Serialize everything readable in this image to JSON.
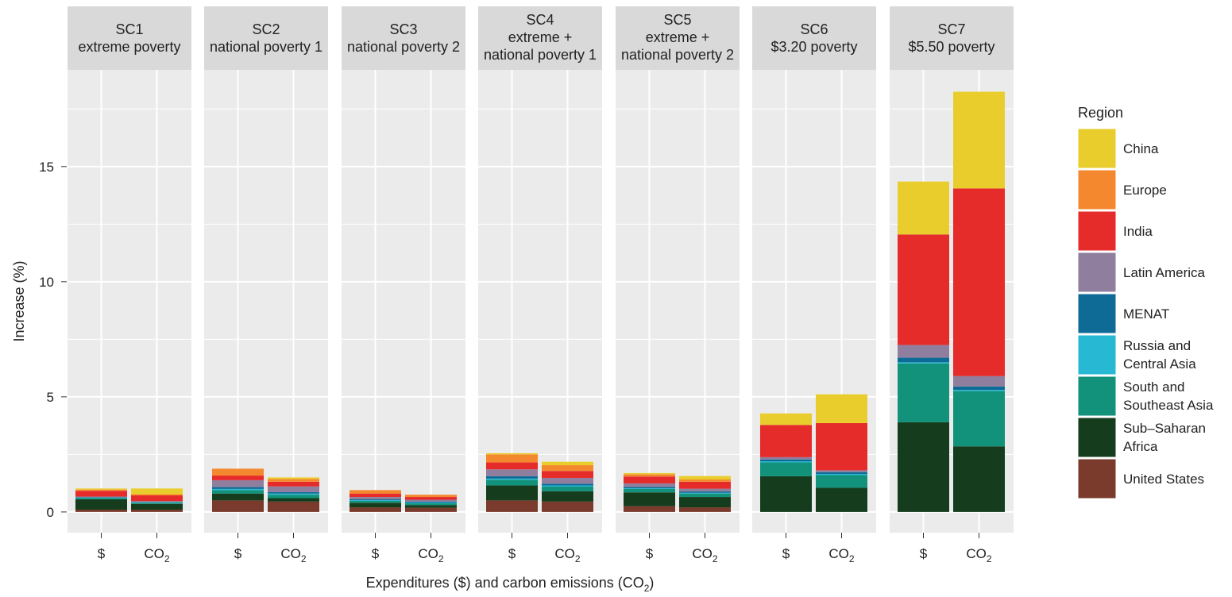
{
  "chart_data": {
    "type": "bar",
    "stacked": true,
    "facets": [
      {
        "title_line1": "SC1",
        "title_lines": [
          "extreme poverty"
        ]
      },
      {
        "title_line1": "SC2",
        "title_lines": [
          "national poverty 1"
        ]
      },
      {
        "title_line1": "SC3",
        "title_lines": [
          "national poverty 2"
        ]
      },
      {
        "title_line1": "SC4",
        "title_lines": [
          "extreme +",
          "national poverty 1"
        ]
      },
      {
        "title_line1": "SC5",
        "title_lines": [
          "extreme +",
          "national poverty 2"
        ]
      },
      {
        "title_line1": "SC6",
        "title_lines": [
          "$3.20 poverty"
        ]
      },
      {
        "title_line1": "SC7",
        "title_lines": [
          "$5.50 poverty"
        ]
      }
    ],
    "categories": [
      "$",
      "CO2"
    ],
    "category_labels": [
      {
        "main": "$",
        "sub": ""
      },
      {
        "main": "CO",
        "sub": "2"
      }
    ],
    "series": [
      {
        "name": "United States",
        "color": "#7b3b2c",
        "values": [
          [
            0.1,
            0.1
          ],
          [
            0.5,
            0.45
          ],
          [
            0.2,
            0.18
          ],
          [
            0.5,
            0.45
          ],
          [
            0.25,
            0.2
          ],
          [
            0.0,
            0.0
          ],
          [
            0.0,
            0.0
          ]
        ]
      },
      {
        "name": "Sub–Saharan Africa",
        "color": "#153d1d",
        "values": [
          [
            0.45,
            0.25
          ],
          [
            0.3,
            0.15
          ],
          [
            0.2,
            0.12
          ],
          [
            0.65,
            0.45
          ],
          [
            0.6,
            0.45
          ],
          [
            1.55,
            1.05
          ],
          [
            3.9,
            2.85
          ]
        ]
      },
      {
        "name": "South and Southeast Asia",
        "color": "#12927a",
        "values": [
          [
            0.05,
            0.05
          ],
          [
            0.15,
            0.15
          ],
          [
            0.08,
            0.08
          ],
          [
            0.25,
            0.2
          ],
          [
            0.15,
            0.15
          ],
          [
            0.6,
            0.55
          ],
          [
            2.55,
            2.4
          ]
        ]
      },
      {
        "name": "Russia and Central Asia",
        "color": "#27b8d4",
        "values": [
          [
            0.02,
            0.02
          ],
          [
            0.05,
            0.05
          ],
          [
            0.03,
            0.03
          ],
          [
            0.05,
            0.05
          ],
          [
            0.03,
            0.03
          ],
          [
            0.05,
            0.05
          ],
          [
            0.05,
            0.05
          ]
        ]
      },
      {
        "name": "MENAT",
        "color": "#0d6b96",
        "values": [
          [
            0.02,
            0.02
          ],
          [
            0.08,
            0.06
          ],
          [
            0.04,
            0.04
          ],
          [
            0.1,
            0.08
          ],
          [
            0.06,
            0.06
          ],
          [
            0.08,
            0.08
          ],
          [
            0.2,
            0.15
          ]
        ]
      },
      {
        "name": "Latin America",
        "color": "#8f7e9e",
        "values": [
          [
            0.03,
            0.03
          ],
          [
            0.3,
            0.25
          ],
          [
            0.1,
            0.08
          ],
          [
            0.3,
            0.25
          ],
          [
            0.15,
            0.12
          ],
          [
            0.1,
            0.08
          ],
          [
            0.55,
            0.45
          ]
        ]
      },
      {
        "name": "India",
        "color": "#e62b2b",
        "values": [
          [
            0.25,
            0.25
          ],
          [
            0.2,
            0.2
          ],
          [
            0.15,
            0.12
          ],
          [
            0.3,
            0.3
          ],
          [
            0.3,
            0.3
          ],
          [
            1.4,
            2.05
          ],
          [
            4.8,
            8.15
          ]
        ]
      },
      {
        "name": "Europe",
        "color": "#f4882e",
        "values": [
          [
            0.05,
            0.05
          ],
          [
            0.3,
            0.12
          ],
          [
            0.15,
            0.1
          ],
          [
            0.35,
            0.25
          ],
          [
            0.1,
            0.1
          ],
          [
            0.0,
            0.0
          ],
          [
            0.0,
            0.0
          ]
        ]
      },
      {
        "name": "China",
        "color": "#e9cd2c",
        "values": [
          [
            0.05,
            0.25
          ],
          [
            0.0,
            0.07
          ],
          [
            0.0,
            0.0
          ],
          [
            0.05,
            0.15
          ],
          [
            0.05,
            0.15
          ],
          [
            0.5,
            1.25
          ],
          [
            2.3,
            4.2
          ]
        ]
      }
    ],
    "legend_order": [
      "China",
      "Europe",
      "India",
      "Latin America",
      "MENAT",
      "Russia and Central Asia",
      "South and Southeast Asia",
      "Sub–Saharan Africa",
      "United States"
    ],
    "legend_labels": [
      [
        "China"
      ],
      [
        "Europe"
      ],
      [
        "India"
      ],
      [
        "Latin America"
      ],
      [
        "MENAT"
      ],
      [
        "Russia and",
        "Central Asia"
      ],
      [
        "South and",
        "Southeast Asia"
      ],
      [
        "Sub–Saharan",
        "Africa"
      ],
      [
        "United States"
      ]
    ],
    "legend_title": "Region",
    "legend_position": "right",
    "ylabel": "Increase (%)",
    "xlabel_pre": "Expenditures ($) and carbon emissions (CO",
    "xlabel_sub": "2",
    "xlabel_post": ")",
    "yticks": [
      0,
      5,
      10,
      15
    ],
    "ylim": [
      -0.9,
      19.2
    ],
    "grid": true
  }
}
